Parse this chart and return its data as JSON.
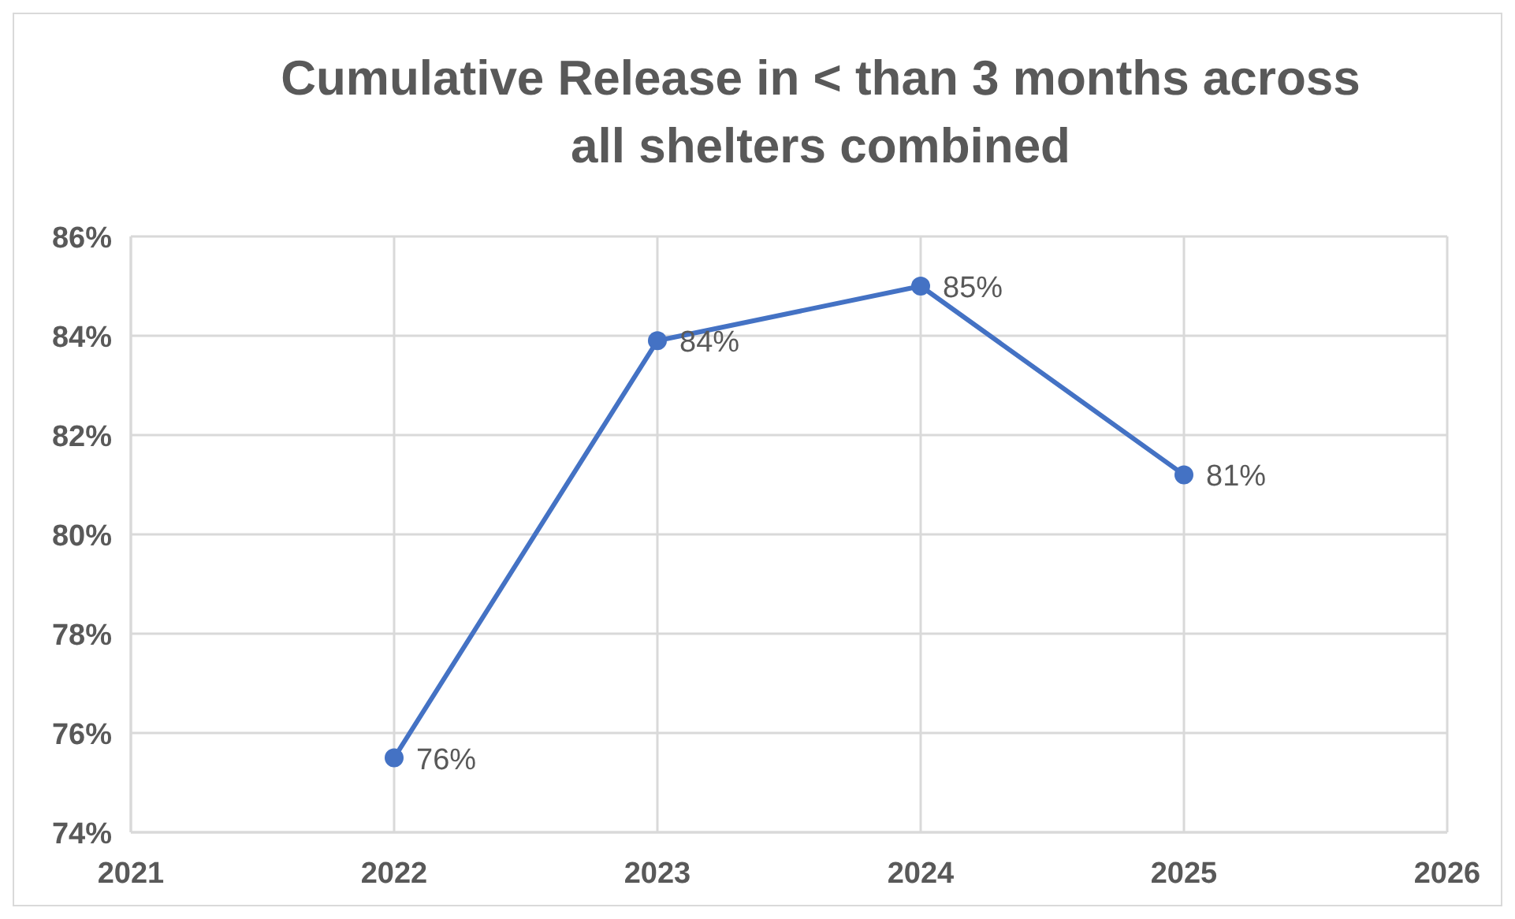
{
  "chart_data": {
    "type": "line",
    "title": "Cumulative Release in < than 3 months across all shelters combined",
    "x": [
      2022,
      2023,
      2024,
      2025
    ],
    "series": [
      {
        "color": "#4472c4",
        "values": [
          75.5,
          83.9,
          85.0,
          81.2
        ],
        "value_labels": [
          "76%",
          "84%",
          "85%",
          "81%"
        ]
      }
    ],
    "xlim": [
      2021,
      2026
    ],
    "xticks": [
      2021,
      2022,
      2023,
      2024,
      2025,
      2026
    ],
    "ylim": [
      74,
      86
    ],
    "yticks": [
      {
        "value": 74,
        "label": "74%"
      },
      {
        "value": 76,
        "label": "76%"
      },
      {
        "value": 78,
        "label": "78%"
      },
      {
        "value": 80,
        "label": "80%"
      },
      {
        "value": 82,
        "label": "82%"
      },
      {
        "value": 84,
        "label": "84%"
      },
      {
        "value": 86,
        "label": "86%"
      }
    ],
    "grid": true,
    "marker": "circle",
    "line_style": "solid"
  }
}
